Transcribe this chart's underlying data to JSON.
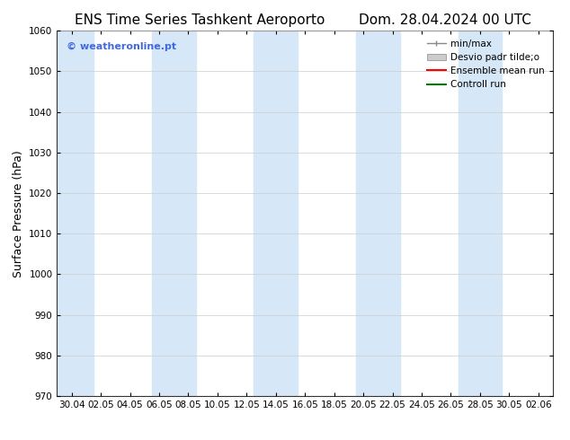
{
  "title_left": "ENS Time Series Tashkent Aeroporto",
  "title_right": "Dom. 28.04.2024 00 UTC",
  "ylabel": "Surface Pressure (hPa)",
  "ylim": [
    970,
    1060
  ],
  "yticks": [
    970,
    980,
    990,
    1000,
    1010,
    1020,
    1030,
    1040,
    1050,
    1060
  ],
  "xtick_labels": [
    "30.04",
    "02.05",
    "04.05",
    "06.05",
    "08.05",
    "10.05",
    "12.05",
    "14.05",
    "16.05",
    "18.05",
    "20.05",
    "22.05",
    "24.05",
    "26.05",
    "28.05",
    "30.05",
    "02.06"
  ],
  "bg_color": "#ffffff",
  "plot_bg_color": "#ffffff",
  "shaded_color": "#d6e8f7",
  "watermark": "© weatheronline.pt",
  "watermark_color": "#4169e1",
  "title_fontsize": 11,
  "tick_fontsize": 7.5,
  "ylabel_fontsize": 9
}
